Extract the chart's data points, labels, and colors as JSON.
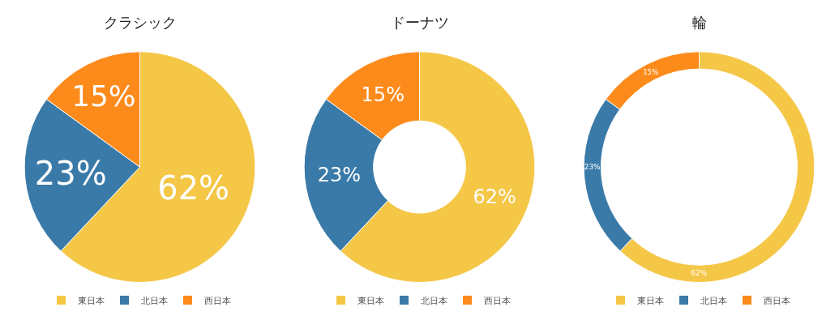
{
  "chart_data": [
    {
      "type": "pie",
      "title": "クラシック",
      "categories": [
        "東日本",
        "北日本",
        "西日本"
      ],
      "values": [
        62,
        23,
        15
      ],
      "value_labels": [
        "62%",
        "23%",
        "15%"
      ],
      "colors": [
        "#f5c747",
        "#3a7aa8",
        "#fd8b1b"
      ],
      "legend": "bottom"
    },
    {
      "type": "donut",
      "title": "ドーナツ",
      "categories": [
        "東日本",
        "北日本",
        "西日本"
      ],
      "values": [
        62,
        23,
        15
      ],
      "value_labels": [
        "62%",
        "23%",
        "15%"
      ],
      "colors": [
        "#f5c747",
        "#3a7aa8",
        "#fd8b1b"
      ],
      "legend": "bottom"
    },
    {
      "type": "donut",
      "title": "輪",
      "categories": [
        "東日本",
        "北日本",
        "西日本"
      ],
      "values": [
        62,
        23,
        15
      ],
      "value_labels": [
        "62%",
        "23%",
        "15%"
      ],
      "colors": [
        "#f5c747",
        "#3a7aa8",
        "#fd8b1b"
      ],
      "legend": "bottom"
    }
  ]
}
